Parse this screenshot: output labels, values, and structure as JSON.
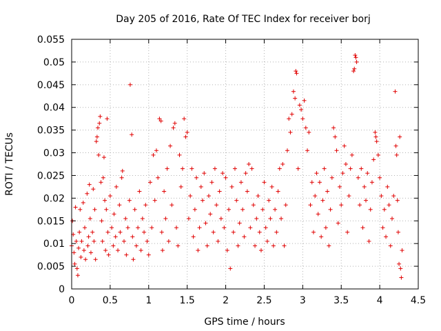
{
  "chart_data": {
    "type": "scatter",
    "title": "Day 205 of 2016, Rate Of TEC Index for receiver borj",
    "xlabel": "GPS time / hours",
    "ylabel": "ROTI / TECUs",
    "xlim": [
      0,
      4.5
    ],
    "ylim": [
      0,
      0.055
    ],
    "xticks": [
      "0",
      "0.5",
      "1",
      "1.5",
      "2",
      "2.5",
      "3",
      "3.5",
      "4",
      "4.5"
    ],
    "xtick_values": [
      0,
      0.5,
      1,
      1.5,
      2,
      2.5,
      3,
      3.5,
      4,
      4.5
    ],
    "yticks": [
      "0",
      "0.005",
      "0.01",
      "0.015",
      "0.02",
      "0.025",
      "0.03",
      "0.035",
      "0.04",
      "0.045",
      "0.05",
      "0.055"
    ],
    "ytick_values": [
      0,
      0.005,
      0.01,
      0.015,
      0.02,
      0.025,
      0.03,
      0.035,
      0.04,
      0.045,
      0.05,
      0.055
    ],
    "grid": true,
    "marker": "plus",
    "color": "#e00000",
    "series": [
      {
        "points": [
          [
            0.0,
            0.0095
          ],
          [
            0.01,
            0.015
          ],
          [
            0.02,
            0.012
          ],
          [
            0.03,
            0.008
          ],
          [
            0.04,
            0.0055
          ],
          [
            0.05,
            0.018
          ],
          [
            0.06,
            0.0105
          ],
          [
            0.07,
            0.0045
          ],
          [
            0.08,
            0.003
          ],
          [
            0.09,
            0.009
          ],
          [
            0.1,
            0.0125
          ],
          [
            0.11,
            0.0175
          ],
          [
            0.12,
            0.007
          ],
          [
            0.13,
            0.0105
          ],
          [
            0.15,
            0.019
          ],
          [
            0.16,
            0.0085
          ],
          [
            0.17,
            0.0135
          ],
          [
            0.18,
            0.0065
          ],
          [
            0.2,
            0.021
          ],
          [
            0.21,
            0.0095
          ],
          [
            0.22,
            0.0115
          ],
          [
            0.23,
            0.023
          ],
          [
            0.24,
            0.0155
          ],
          [
            0.25,
            0.008
          ],
          [
            0.27,
            0.0125
          ],
          [
            0.28,
            0.022
          ],
          [
            0.29,
            0.0105
          ],
          [
            0.3,
            0.0175
          ],
          [
            0.31,
            0.0065
          ],
          [
            0.32,
            0.0325
          ],
          [
            0.33,
            0.0335
          ],
          [
            0.34,
            0.0355
          ],
          [
            0.35,
            0.0295
          ],
          [
            0.36,
            0.0365
          ],
          [
            0.37,
            0.038
          ],
          [
            0.38,
            0.0235
          ],
          [
            0.39,
            0.015
          ],
          [
            0.4,
            0.0105
          ],
          [
            0.41,
            0.0245
          ],
          [
            0.42,
            0.029
          ],
          [
            0.43,
            0.0195
          ],
          [
            0.44,
            0.0085
          ],
          [
            0.45,
            0.0175
          ],
          [
            0.46,
            0.0375
          ],
          [
            0.47,
            0.0125
          ],
          [
            0.48,
            0.0075
          ],
          [
            0.5,
            0.0205
          ],
          [
            0.52,
            0.0135
          ],
          [
            0.54,
            0.0095
          ],
          [
            0.55,
            0.0165
          ],
          [
            0.57,
            0.0115
          ],
          [
            0.58,
            0.0225
          ],
          [
            0.6,
            0.0085
          ],
          [
            0.62,
            0.0185
          ],
          [
            0.63,
            0.0125
          ],
          [
            0.65,
            0.0245
          ],
          [
            0.66,
            0.026
          ],
          [
            0.68,
            0.0105
          ],
          [
            0.7,
            0.0155
          ],
          [
            0.71,
            0.0075
          ],
          [
            0.73,
            0.0135
          ],
          [
            0.75,
            0.0195
          ],
          [
            0.76,
            0.045
          ],
          [
            0.78,
            0.034
          ],
          [
            0.79,
            0.0115
          ],
          [
            0.8,
            0.0065
          ],
          [
            0.82,
            0.0175
          ],
          [
            0.84,
            0.0095
          ],
          [
            0.86,
            0.0135
          ],
          [
            0.88,
            0.0215
          ],
          [
            0.9,
            0.0085
          ],
          [
            0.92,
            0.0155
          ],
          [
            0.94,
            0.0125
          ],
          [
            0.96,
            0.0185
          ],
          [
            0.98,
            0.0105
          ],
          [
            1.0,
            0.0075
          ],
          [
            1.02,
            0.0235
          ],
          [
            1.04,
            0.0135
          ],
          [
            1.06,
            0.0295
          ],
          [
            1.08,
            0.0195
          ],
          [
            1.1,
            0.0305
          ],
          [
            1.12,
            0.0245
          ],
          [
            1.14,
            0.0375
          ],
          [
            1.16,
            0.037
          ],
          [
            1.17,
            0.0125
          ],
          [
            1.18,
            0.0085
          ],
          [
            1.2,
            0.0215
          ],
          [
            1.22,
            0.0155
          ],
          [
            1.24,
            0.0265
          ],
          [
            1.26,
            0.0105
          ],
          [
            1.28,
            0.0315
          ],
          [
            1.3,
            0.0185
          ],
          [
            1.32,
            0.0355
          ],
          [
            1.34,
            0.0365
          ],
          [
            1.36,
            0.0135
          ],
          [
            1.38,
            0.0095
          ],
          [
            1.4,
            0.0295
          ],
          [
            1.42,
            0.0225
          ],
          [
            1.44,
            0.0265
          ],
          [
            1.46,
            0.0375
          ],
          [
            1.48,
            0.0335
          ],
          [
            1.5,
            0.0345
          ],
          [
            1.52,
            0.0155
          ],
          [
            1.54,
            0.0205
          ],
          [
            1.56,
            0.0265
          ],
          [
            1.58,
            0.0115
          ],
          [
            1.6,
            0.0175
          ],
          [
            1.62,
            0.0245
          ],
          [
            1.64,
            0.0085
          ],
          [
            1.66,
            0.0135
          ],
          [
            1.68,
            0.0225
          ],
          [
            1.7,
            0.0195
          ],
          [
            1.72,
            0.0255
          ],
          [
            1.74,
            0.0145
          ],
          [
            1.76,
            0.0095
          ],
          [
            1.78,
            0.0205
          ],
          [
            1.8,
            0.0165
          ],
          [
            1.82,
            0.0235
          ],
          [
            1.84,
            0.0125
          ],
          [
            1.86,
            0.0265
          ],
          [
            1.88,
            0.0185
          ],
          [
            1.9,
            0.0105
          ],
          [
            1.92,
            0.0215
          ],
          [
            1.94,
            0.0155
          ],
          [
            1.96,
            0.0255
          ],
          [
            1.98,
            0.0135
          ],
          [
            2.0,
            0.0245
          ],
          [
            2.02,
            0.0085
          ],
          [
            2.04,
            0.0175
          ],
          [
            2.06,
            0.0045
          ],
          [
            2.08,
            0.0225
          ],
          [
            2.1,
            0.0125
          ],
          [
            2.12,
            0.0265
          ],
          [
            2.14,
            0.0195
          ],
          [
            2.16,
            0.0095
          ],
          [
            2.18,
            0.0145
          ],
          [
            2.2,
            0.0235
          ],
          [
            2.22,
            0.0175
          ],
          [
            2.24,
            0.0115
          ],
          [
            2.26,
            0.0255
          ],
          [
            2.28,
            0.0215
          ],
          [
            2.3,
            0.0275
          ],
          [
            2.32,
            0.0135
          ],
          [
            2.34,
            0.0265
          ],
          [
            2.36,
            0.0185
          ],
          [
            2.38,
            0.0095
          ],
          [
            2.4,
            0.0155
          ],
          [
            2.42,
            0.0205
          ],
          [
            2.44,
            0.0125
          ],
          [
            2.46,
            0.0085
          ],
          [
            2.48,
            0.0175
          ],
          [
            2.5,
            0.0235
          ],
          [
            2.52,
            0.0135
          ],
          [
            2.54,
            0.0105
          ],
          [
            2.56,
            0.0195
          ],
          [
            2.58,
            0.0155
          ],
          [
            2.6,
            0.0225
          ],
          [
            2.62,
            0.0095
          ],
          [
            2.64,
            0.0175
          ],
          [
            2.66,
            0.0125
          ],
          [
            2.68,
            0.0215
          ],
          [
            2.7,
            0.0265
          ],
          [
            2.72,
            0.0155
          ],
          [
            2.74,
            0.0275
          ],
          [
            2.76,
            0.0095
          ],
          [
            2.78,
            0.0185
          ],
          [
            2.8,
            0.0305
          ],
          [
            2.82,
            0.0375
          ],
          [
            2.84,
            0.0345
          ],
          [
            2.86,
            0.0385
          ],
          [
            2.88,
            0.0435
          ],
          [
            2.9,
            0.042
          ],
          [
            2.91,
            0.048
          ],
          [
            2.92,
            0.0475
          ],
          [
            2.94,
            0.0265
          ],
          [
            2.96,
            0.0405
          ],
          [
            2.98,
            0.0395
          ],
          [
            3.0,
            0.0375
          ],
          [
            3.02,
            0.0415
          ],
          [
            3.04,
            0.0355
          ],
          [
            3.06,
            0.0305
          ],
          [
            3.08,
            0.0345
          ],
          [
            3.1,
            0.0185
          ],
          [
            3.12,
            0.0235
          ],
          [
            3.14,
            0.0125
          ],
          [
            3.16,
            0.0205
          ],
          [
            3.18,
            0.0255
          ],
          [
            3.2,
            0.0165
          ],
          [
            3.22,
            0.0235
          ],
          [
            3.24,
            0.0115
          ],
          [
            3.26,
            0.0195
          ],
          [
            3.28,
            0.0265
          ],
          [
            3.3,
            0.0135
          ],
          [
            3.32,
            0.0215
          ],
          [
            3.34,
            0.0095
          ],
          [
            3.36,
            0.0175
          ],
          [
            3.38,
            0.0245
          ],
          [
            3.4,
            0.0355
          ],
          [
            3.42,
            0.0335
          ],
          [
            3.44,
            0.0305
          ],
          [
            3.46,
            0.0145
          ],
          [
            3.48,
            0.0225
          ],
          [
            3.5,
            0.0185
          ],
          [
            3.52,
            0.0255
          ],
          [
            3.54,
            0.0315
          ],
          [
            3.56,
            0.0275
          ],
          [
            3.58,
            0.0125
          ],
          [
            3.6,
            0.0205
          ],
          [
            3.62,
            0.0265
          ],
          [
            3.64,
            0.0295
          ],
          [
            3.66,
            0.048
          ],
          [
            3.67,
            0.0485
          ],
          [
            3.68,
            0.0515
          ],
          [
            3.69,
            0.051
          ],
          [
            3.7,
            0.05
          ],
          [
            3.72,
            0.0245
          ],
          [
            3.74,
            0.0185
          ],
          [
            3.76,
            0.0265
          ],
          [
            3.78,
            0.0135
          ],
          [
            3.8,
            0.0225
          ],
          [
            3.82,
            0.0195
          ],
          [
            3.84,
            0.0255
          ],
          [
            3.86,
            0.0105
          ],
          [
            3.88,
            0.0175
          ],
          [
            3.9,
            0.0235
          ],
          [
            3.92,
            0.0285
          ],
          [
            3.94,
            0.0345
          ],
          [
            3.95,
            0.0335
          ],
          [
            3.96,
            0.0325
          ],
          [
            3.98,
            0.0295
          ],
          [
            4.0,
            0.0245
          ],
          [
            4.02,
            0.0205
          ],
          [
            4.04,
            0.0135
          ],
          [
            4.06,
            0.0175
          ],
          [
            4.08,
            0.0115
          ],
          [
            4.1,
            0.0225
          ],
          [
            4.12,
            0.0185
          ],
          [
            4.14,
            0.0095
          ],
          [
            4.16,
            0.0155
          ],
          [
            4.18,
            0.0205
          ],
          [
            4.2,
            0.0435
          ],
          [
            4.21,
            0.0315
          ],
          [
            4.22,
            0.0295
          ],
          [
            4.23,
            0.0195
          ],
          [
            4.24,
            0.0125
          ],
          [
            4.25,
            0.0055
          ],
          [
            4.26,
            0.0335
          ],
          [
            4.27,
            0.0045
          ],
          [
            4.28,
            0.0025
          ],
          [
            4.29,
            0.0085
          ]
        ]
      }
    ]
  }
}
